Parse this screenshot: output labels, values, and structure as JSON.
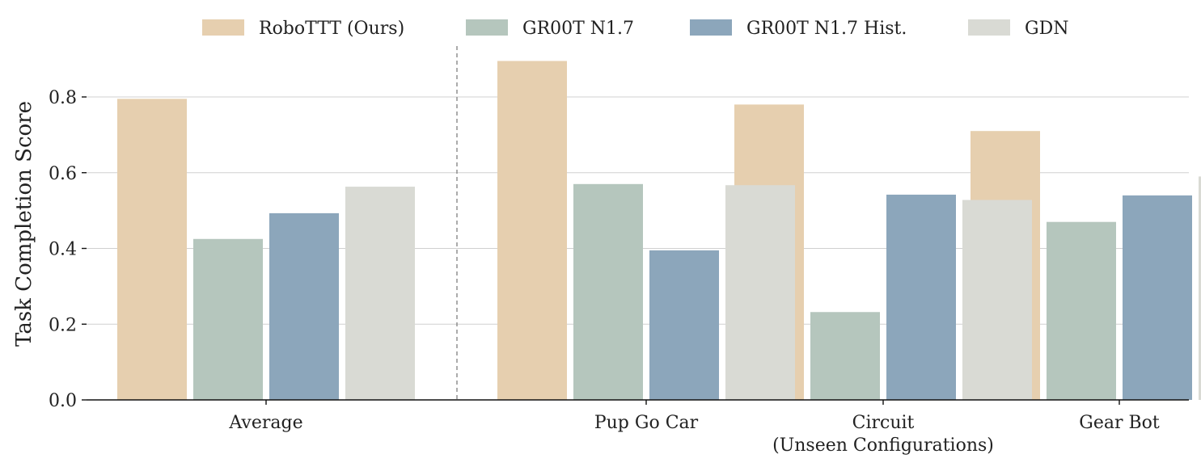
{
  "chart_data": {
    "type": "bar",
    "ylabel": "Task Completion Score",
    "ylim": [
      0,
      0.92
    ],
    "yticks": [
      "0.0",
      "0.2",
      "0.4",
      "0.6",
      "0.8"
    ],
    "ytick_values": [
      0.0,
      0.2,
      0.4,
      0.6,
      0.8
    ],
    "grid": "horizontal",
    "legend_position": "top-center",
    "separator": "dashed vertical line after Average",
    "groups": [
      {
        "label": "Average",
        "label_line2": ""
      },
      {
        "label": "Pup Go Car",
        "label_line2": ""
      },
      {
        "label": "Circuit",
        "label_line2": "(Unseen Configurations)"
      },
      {
        "label": "Gear Bot",
        "label_line2": ""
      }
    ],
    "series": [
      {
        "name": "RoboTTT (Ours)",
        "color": "#e6cfaf",
        "values": [
          0.795,
          0.895,
          0.78,
          0.71
        ]
      },
      {
        "name": "GR00T N1.7",
        "color": "#b5c6bd",
        "values": [
          0.425,
          0.57,
          0.232,
          0.47
        ]
      },
      {
        "name": "GR00T N1.7 Hist.",
        "color": "#8ca6bb",
        "values": [
          0.493,
          0.395,
          0.542,
          0.54
        ]
      },
      {
        "name": "GDN",
        "color": "#d9dad4",
        "values": [
          0.563,
          0.567,
          0.528,
          0.59
        ]
      }
    ]
  }
}
